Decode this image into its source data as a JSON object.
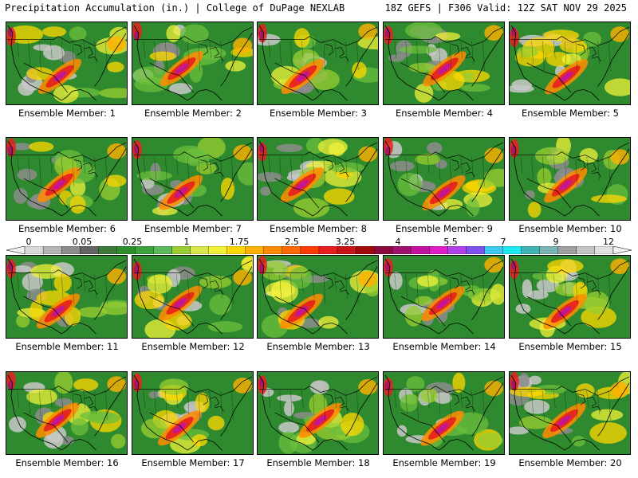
{
  "header": {
    "left": "Precipitation Accumulation (in.) | College of DuPage NEXLAB",
    "right": "18Z GEFS | F306 Valid: 12Z SAT NOV 29 2025"
  },
  "panels": [
    {
      "caption": "Ensemble Member: 1"
    },
    {
      "caption": "Ensemble Member: 2"
    },
    {
      "caption": "Ensemble Member: 3"
    },
    {
      "caption": "Ensemble Member: 4"
    },
    {
      "caption": "Ensemble Member: 5"
    },
    {
      "caption": "Ensemble Member: 6"
    },
    {
      "caption": "Ensemble Member: 7"
    },
    {
      "caption": "Ensemble Member: 8"
    },
    {
      "caption": "Ensemble Member: 9"
    },
    {
      "caption": "Ensemble Member: 10"
    },
    {
      "caption": "Ensemble Member: 11"
    },
    {
      "caption": "Ensemble Member: 12"
    },
    {
      "caption": "Ensemble Member: 13"
    },
    {
      "caption": "Ensemble Member: 14"
    },
    {
      "caption": "Ensemble Member: 15"
    },
    {
      "caption": "Ensemble Member: 16"
    },
    {
      "caption": "Ensemble Member: 17"
    },
    {
      "caption": "Ensemble Member: 18"
    },
    {
      "caption": "Ensemble Member: 19"
    },
    {
      "caption": "Ensemble Member: 20"
    }
  ],
  "colorbar": {
    "labels": [
      "0",
      "0.05",
      "0.25",
      "1",
      "1.75",
      "2.5",
      "3.25",
      "4",
      "5.5",
      "7",
      "9",
      "12"
    ],
    "colors": [
      "#d8d8d8",
      "#b4b4b4",
      "#8c8c8c",
      "#646464",
      "#3c7a3c",
      "#2f8f2f",
      "#3ca33c",
      "#5cb85c",
      "#9acd32",
      "#d7e64a",
      "#f2f23a",
      "#ffd700",
      "#ffb000",
      "#ff8c00",
      "#ff6a00",
      "#ff3c00",
      "#e81e1e",
      "#c81414",
      "#a00a0a",
      "#8b0a3c",
      "#a0106e",
      "#c014a0",
      "#e01ec8",
      "#b040e8",
      "#8050f0",
      "#40c8f0",
      "#20e8f0",
      "#40b4b4",
      "#7ab4b4",
      "#a0a0a0",
      "#c4c4c4",
      "#e0e0e0"
    ]
  }
}
